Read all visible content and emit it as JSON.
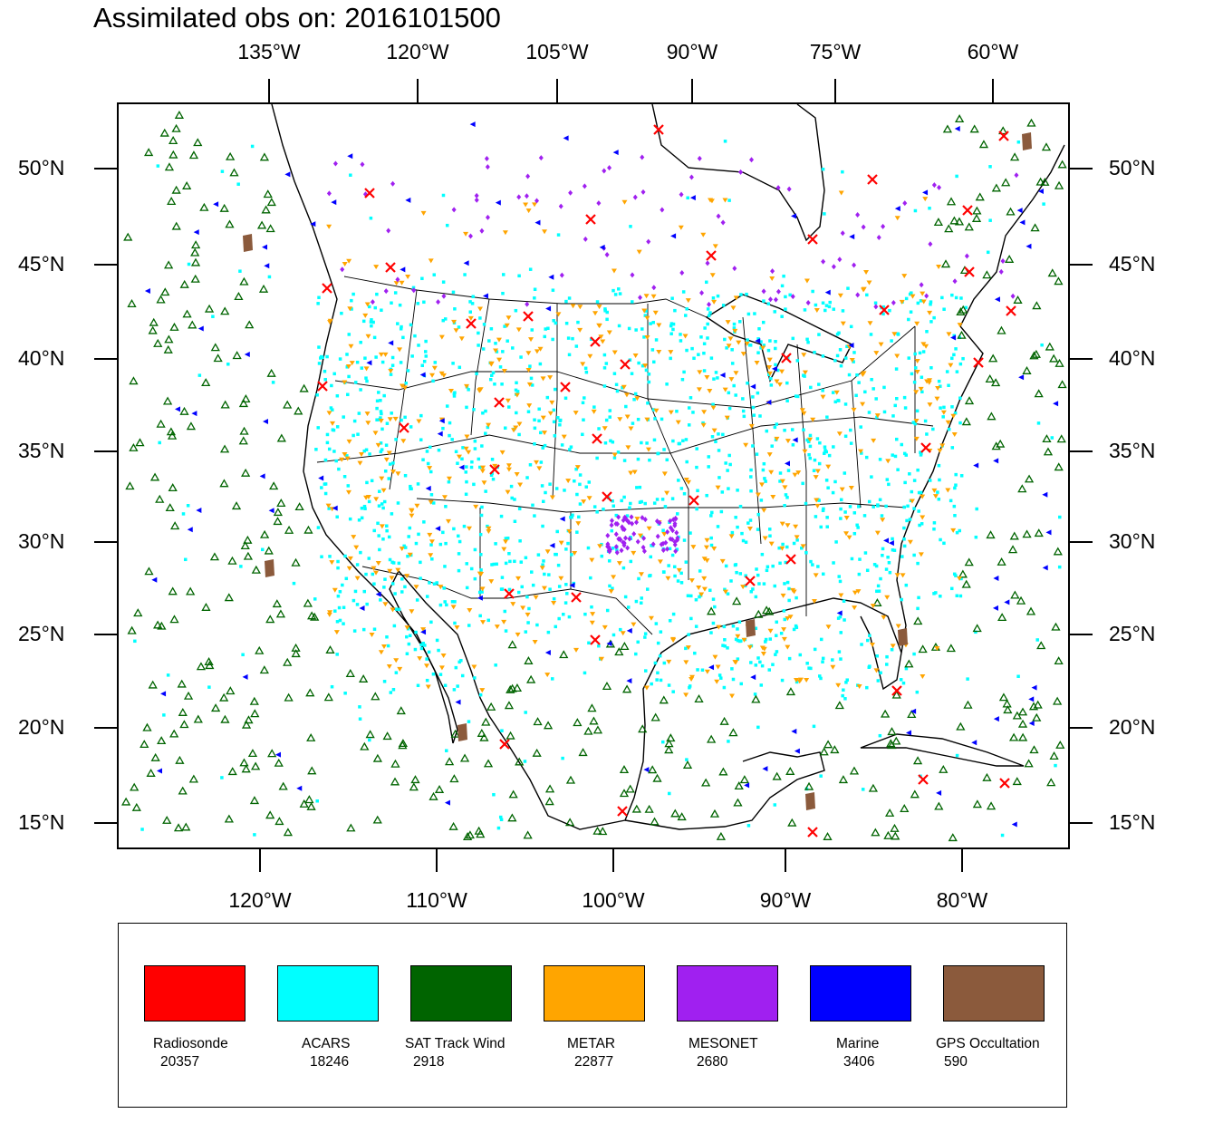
{
  "title": "Assimilated obs on: 2016101500",
  "top_lon_ticks": [
    {
      "label": "135°W",
      "lon": 135
    },
    {
      "label": "120°W",
      "lon": 120
    },
    {
      "label": "105°W",
      "lon": 105
    },
    {
      "label": "90°W",
      "lon": 90
    },
    {
      "label": "75°W",
      "lon": 75
    },
    {
      "label": "60°W",
      "lon": 60
    }
  ],
  "bottom_lon_ticks": [
    {
      "label": "120°W",
      "lon": 120
    },
    {
      "label": "110°W",
      "lon": 110
    },
    {
      "label": "100°W",
      "lon": 100
    },
    {
      "label": "90°W",
      "lon": 90
    },
    {
      "label": "80°W",
      "lon": 80
    }
  ],
  "lat_ticks": [
    {
      "label": "50°N",
      "lat": 50
    },
    {
      "label": "45°N",
      "lat": 45
    },
    {
      "label": "40°N",
      "lat": 40
    },
    {
      "label": "35°N",
      "lat": 35
    },
    {
      "label": "30°N",
      "lat": 30
    },
    {
      "label": "25°N",
      "lat": 25
    },
    {
      "label": "20°N",
      "lat": 20
    },
    {
      "label": "15°N",
      "lat": 15
    }
  ],
  "legend": [
    {
      "name": "Radiosonde",
      "count": "20357",
      "color": "#ff0000"
    },
    {
      "name": "ACARS",
      "count": "18246",
      "color": "#00ffff"
    },
    {
      "name": "SAT Track Wind",
      "count": "2918",
      "color": "#006400"
    },
    {
      "name": "METAR",
      "count": "22877",
      "color": "#ffa500"
    },
    {
      "name": "MESONET",
      "count": "2680",
      "color": "#a020f0"
    },
    {
      "name": "Marine",
      "count": "3406",
      "color": "#0000ff"
    },
    {
      "name": "GPS Occultation",
      "count": "590",
      "color": "#8b5a3c"
    }
  ],
  "markers": {
    "radiosonde": "red-x-icon",
    "acars": "cyan-square-icon",
    "sat_track_wind": "green-triangle-icon",
    "metar": "orange-down-triangle-icon",
    "mesonet": "purple-diamond-icon",
    "marine": "blue-left-triangle-icon",
    "gps": "brown-quad-icon"
  }
}
